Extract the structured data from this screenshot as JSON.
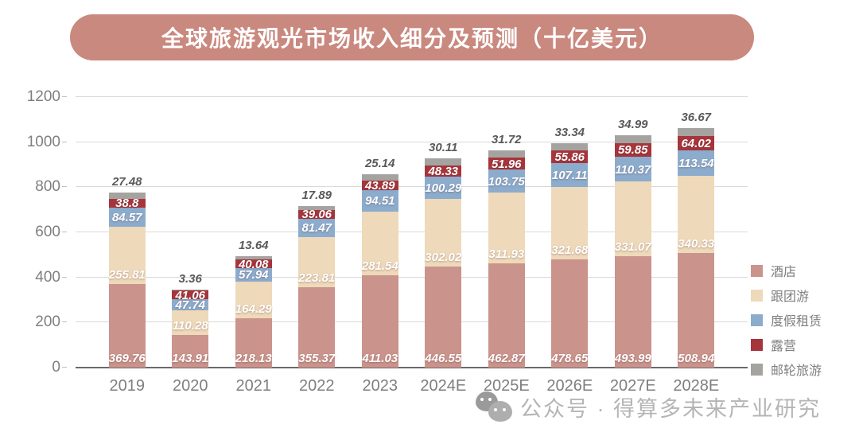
{
  "title": {
    "text": "全球旅游观光市场收入细分及预测（十亿美元）"
  },
  "watermark": {
    "icon": "wechat-icon",
    "text": "公众号 · 得算多未来产业研究"
  },
  "colors": {
    "banner_bg": "#c9897f",
    "banner_text": "#ffffff",
    "gridline": "#d9d9d9",
    "axis_line": "#6a6a6a",
    "axis_text": "#7f7f7f",
    "inside_label_text": "#ffffff",
    "above_label_text": "#595959",
    "watermark_text": "#b5b5b5"
  },
  "chart_data": {
    "type": "bar",
    "stacked": true,
    "title": "全球旅游观光市场收入细分及预测（十亿美元）",
    "xlabel": "",
    "ylabel": "",
    "ylim": [
      0,
      1200
    ],
    "yticks": [
      0,
      200,
      400,
      600,
      800,
      1000,
      1200
    ],
    "grid": true,
    "legend_position": "right",
    "categories": [
      "2019",
      "2020",
      "2021",
      "2022",
      "2023",
      "2024E",
      "2025E",
      "2026E",
      "2027E",
      "2028E"
    ],
    "series": [
      {
        "name": "酒店",
        "color": "#ca938c",
        "label_position": "inside-base",
        "values": [
          369.76,
          143.91,
          218.13,
          355.37,
          411.03,
          446.55,
          462.87,
          478.65,
          493.99,
          508.94
        ]
      },
      {
        "name": "跟团游",
        "color": "#eed9ba",
        "label_position": "inside-base",
        "values": [
          255.81,
          110.28,
          164.29,
          223.81,
          281.54,
          302.02,
          311.93,
          321.68,
          331.07,
          340.33
        ]
      },
      {
        "name": "度假租赁",
        "color": "#8caccd",
        "label_position": "inside-center",
        "values": [
          84.57,
          47.74,
          57.94,
          81.47,
          94.51,
          100.29,
          103.75,
          107.11,
          110.37,
          113.54
        ]
      },
      {
        "name": "露营",
        "color": "#a6353c",
        "label_position": "inside-center",
        "values": [
          38.8,
          41.06,
          40.08,
          39.06,
          43.89,
          48.33,
          51.96,
          55.86,
          59.85,
          64.02
        ]
      },
      {
        "name": "邮轮旅游",
        "color": "#a5a3a0",
        "label_position": "above",
        "values": [
          27.48,
          3.36,
          13.64,
          17.89,
          25.14,
          30.11,
          31.72,
          33.34,
          34.99,
          36.67
        ]
      }
    ]
  }
}
